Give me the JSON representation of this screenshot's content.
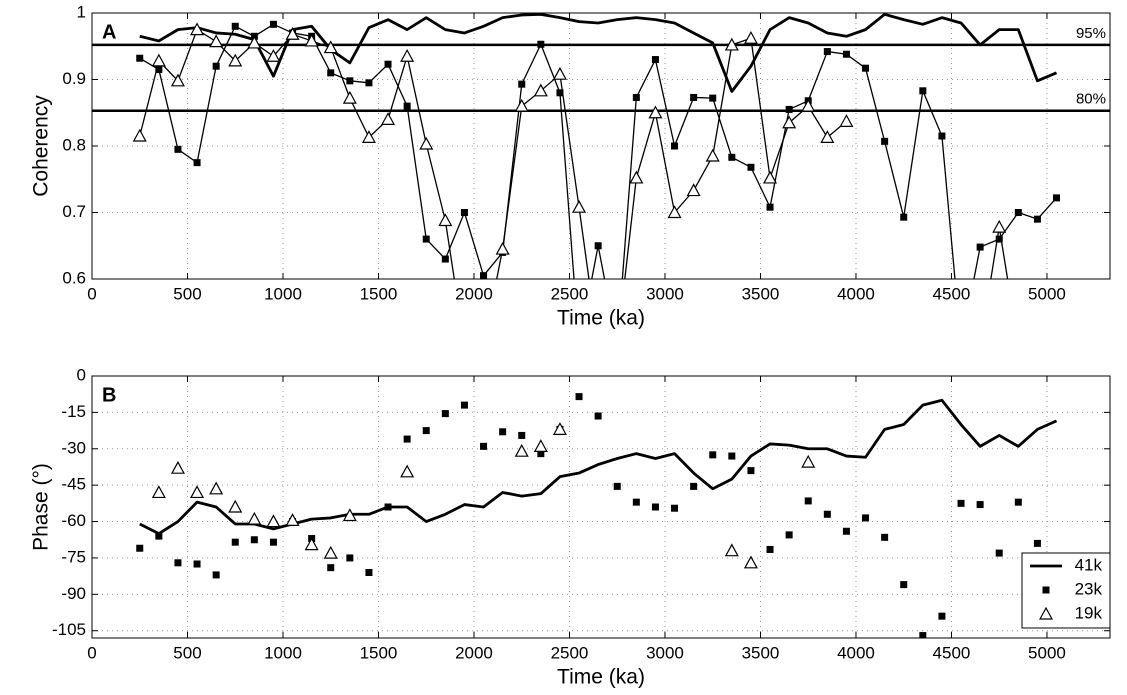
{
  "chart_data": [
    {
      "type": "line",
      "panel_label": "A",
      "x_label": "Time (ka)",
      "y_label": "Coherency",
      "x": [
        250,
        350,
        450,
        550,
        650,
        750,
        850,
        950,
        1050,
        1150,
        1250,
        1350,
        1450,
        1550,
        1650,
        1750,
        1850,
        1950,
        2050,
        2150,
        2250,
        2350,
        2450,
        2550,
        2650,
        2750,
        2850,
        2950,
        3050,
        3150,
        3250,
        3350,
        3450,
        3550,
        3650,
        3750,
        3850,
        3950,
        4050,
        4150,
        4250,
        4350,
        4450,
        4550,
        4650,
        4750,
        4850,
        4950,
        5050
      ],
      "xlim": [
        0,
        5330
      ],
      "xticks": [
        0,
        500,
        1000,
        1500,
        2000,
        2500,
        3000,
        3500,
        4000,
        4500,
        5000
      ],
      "ylim": [
        0.6,
        1
      ],
      "yticks": [
        0.6,
        0.7,
        0.8,
        0.9,
        1
      ],
      "grid": true,
      "reference_lines": [
        {
          "value": 0.952,
          "label": "95%"
        },
        {
          "value": 0.853,
          "label": "80%"
        }
      ],
      "series": [
        {
          "color": "#000000",
          "marker": "none",
          "line": true,
          "values": [
            0.965,
            0.958,
            0.975,
            0.978,
            0.97,
            0.968,
            0.96,
            0.905,
            0.975,
            0.98,
            0.945,
            0.925,
            0.978,
            0.99,
            0.975,
            0.993,
            0.975,
            0.97,
            0.98,
            0.993,
            0.997,
            0.998,
            0.993,
            0.987,
            0.985,
            0.99,
            0.993,
            0.99,
            0.985,
            0.97,
            0.955,
            0.882,
            0.92,
            0.975,
            0.993,
            0.985,
            0.97,
            0.965,
            0.975,
            0.998,
            0.99,
            0.983,
            0.993,
            0.985,
            0.952,
            0.975,
            0.975,
            0.898,
            0.91
          ]
        },
        {
          "color": "#000000",
          "marker": "square",
          "line": true,
          "values": [
            0.932,
            0.915,
            0.795,
            0.775,
            0.92,
            0.98,
            0.965,
            0.983,
            0.97,
            0.965,
            0.91,
            0.898,
            0.895,
            0.923,
            0.86,
            0.66,
            0.63,
            0.7,
            0.605,
            0.64,
            0.893,
            0.953,
            0.88,
            0.5,
            0.65,
            0.5,
            0.873,
            0.93,
            0.8,
            0.873,
            0.872,
            0.783,
            0.768,
            0.708,
            0.855,
            0.868,
            0.942,
            0.938,
            0.917,
            0.807,
            0.693,
            0.883,
            0.815,
            0.5,
            0.648,
            0.66,
            0.7,
            0.69,
            0.722
          ]
        },
        {
          "color": "#000000",
          "marker": "triangle",
          "line": true,
          "values": [
            0.815,
            0.928,
            0.898,
            0.975,
            0.957,
            0.928,
            0.955,
            0.935,
            0.968,
            0.958,
            0.948,
            0.872,
            0.813,
            0.84,
            0.935,
            0.803,
            0.688,
            0.5,
            0.5,
            0.645,
            0.86,
            0.883,
            0.908,
            0.708,
            0.5,
            0.5,
            0.752,
            0.85,
            0.7,
            0.733,
            0.785,
            0.952,
            0.962,
            0.752,
            0.835,
            0.86,
            0.813,
            0.837,
            null,
            null,
            null,
            null,
            null,
            null,
            0.5,
            0.678,
            0.5,
            null,
            null
          ]
        }
      ]
    },
    {
      "type": "line",
      "panel_label": "B",
      "x_label": "Time (ka)",
      "y_label": "Phase (°)",
      "x": [
        250,
        350,
        450,
        550,
        650,
        750,
        850,
        950,
        1050,
        1150,
        1250,
        1350,
        1450,
        1550,
        1650,
        1750,
        1850,
        1950,
        2050,
        2150,
        2250,
        2350,
        2450,
        2550,
        2650,
        2750,
        2850,
        2950,
        3050,
        3150,
        3250,
        3350,
        3450,
        3550,
        3650,
        3750,
        3850,
        3950,
        4050,
        4150,
        4250,
        4350,
        4450,
        4550,
        4650,
        4750,
        4850,
        4950,
        5050
      ],
      "xlim": [
        0,
        5330
      ],
      "xticks": [
        0,
        500,
        1000,
        1500,
        2000,
        2500,
        3000,
        3500,
        4000,
        4500,
        5000
      ],
      "ylim": [
        -108,
        0
      ],
      "yticks": [
        0,
        -15,
        -30,
        -45,
        -60,
        -75,
        -90,
        -105
      ],
      "grid": true,
      "legend": "lower right",
      "series": [
        {
          "name": "41k",
          "color": "#000000",
          "marker": "none",
          "line": true,
          "values": [
            -61,
            -65,
            -60,
            -52,
            -54,
            -61,
            -61,
            -63,
            -61,
            -59,
            -58.5,
            -57,
            -57,
            -54,
            -54,
            -60,
            -57,
            -53,
            -54,
            -48,
            -49.5,
            -48.5,
            -41.5,
            -40,
            -36.5,
            -34,
            -32,
            -34,
            -32,
            -40,
            -46.5,
            -42.5,
            -33,
            -28,
            -28.5,
            -30,
            -30,
            -33,
            -33.5,
            -22,
            -20,
            -12,
            -10,
            -20,
            -29,
            -24.5,
            -29,
            -22,
            -18.5
          ]
        },
        {
          "name": "23k",
          "color": "#000000",
          "marker": "square",
          "line": false,
          "values": [
            -71,
            -66,
            -77,
            -77.5,
            -82,
            -68.5,
            -67.5,
            -68.5,
            -60,
            -67,
            -79,
            -75,
            -81,
            -54,
            -26,
            -22.5,
            -15.5,
            -12,
            -29,
            -23,
            -24.5,
            -32,
            -22,
            -8.5,
            -16.5,
            -45.5,
            -52,
            -54,
            -54.5,
            -45.5,
            -32.5,
            -33,
            -39,
            -71.5,
            -65.5,
            -51.5,
            -57,
            -64,
            -58.5,
            -66.5,
            -86,
            -107,
            -99,
            -52.5,
            -53,
            -73,
            -52,
            -69,
            null
          ]
        },
        {
          "name": "19k",
          "color": "#000000",
          "marker": "triangle",
          "line": false,
          "values": [
            null,
            -48,
            -38,
            -48,
            -46.5,
            -54,
            -59,
            -60,
            -59.5,
            -69.5,
            -73,
            -57.5,
            null,
            null,
            -39.5,
            null,
            null,
            null,
            null,
            null,
            -31,
            -29,
            -22,
            null,
            null,
            null,
            null,
            null,
            null,
            null,
            null,
            -72,
            -77,
            null,
            null,
            -35.5,
            null,
            null,
            null,
            null,
            null,
            null,
            null,
            null,
            null,
            null,
            null,
            null,
            null
          ]
        }
      ]
    }
  ]
}
